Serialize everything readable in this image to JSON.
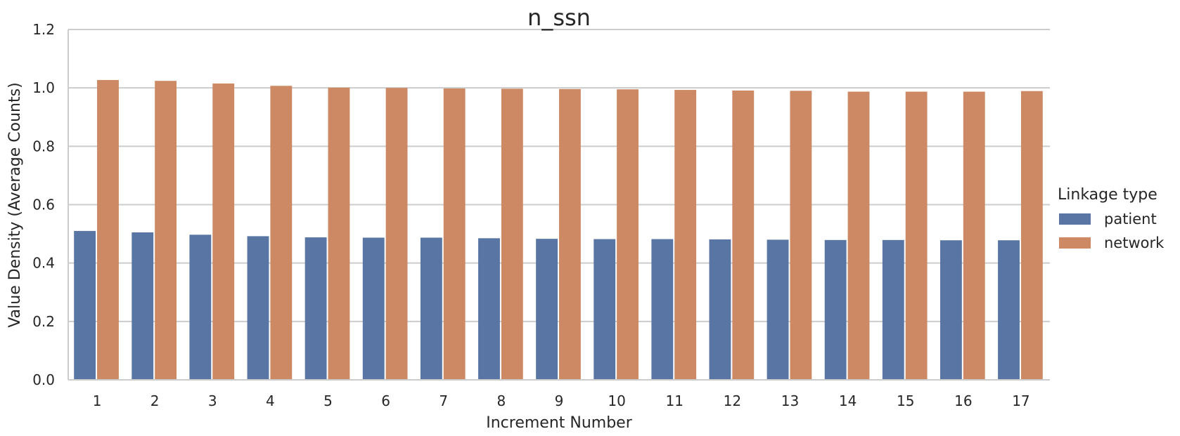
{
  "chart_data": {
    "type": "bar",
    "title": "n_ssn",
    "xlabel": "Increment Number",
    "ylabel": "Value Density (Average Counts)",
    "ylim": [
      0,
      1.2
    ],
    "yticks": [
      "0.0",
      "0.2",
      "0.4",
      "0.6",
      "0.8",
      "1.0",
      "1.2"
    ],
    "grid": "horizontal",
    "legend_title": "Linkage type",
    "legend_position": "right",
    "categories": [
      "1",
      "2",
      "3",
      "4",
      "5",
      "6",
      "7",
      "8",
      "9",
      "10",
      "11",
      "12",
      "13",
      "14",
      "15",
      "16",
      "17"
    ],
    "series": [
      {
        "name": "patient",
        "color": "#5875a4",
        "values": [
          0.51,
          0.505,
          0.497,
          0.492,
          0.488,
          0.487,
          0.487,
          0.485,
          0.483,
          0.482,
          0.482,
          0.481,
          0.48,
          0.479,
          0.479,
          0.478,
          0.478
        ]
      },
      {
        "name": "network",
        "color": "#cc8963",
        "values": [
          1.027,
          1.024,
          1.015,
          1.007,
          1.001,
          1.0,
          0.998,
          0.997,
          0.996,
          0.995,
          0.993,
          0.991,
          0.99,
          0.987,
          0.987,
          0.987,
          0.989
        ]
      }
    ]
  }
}
